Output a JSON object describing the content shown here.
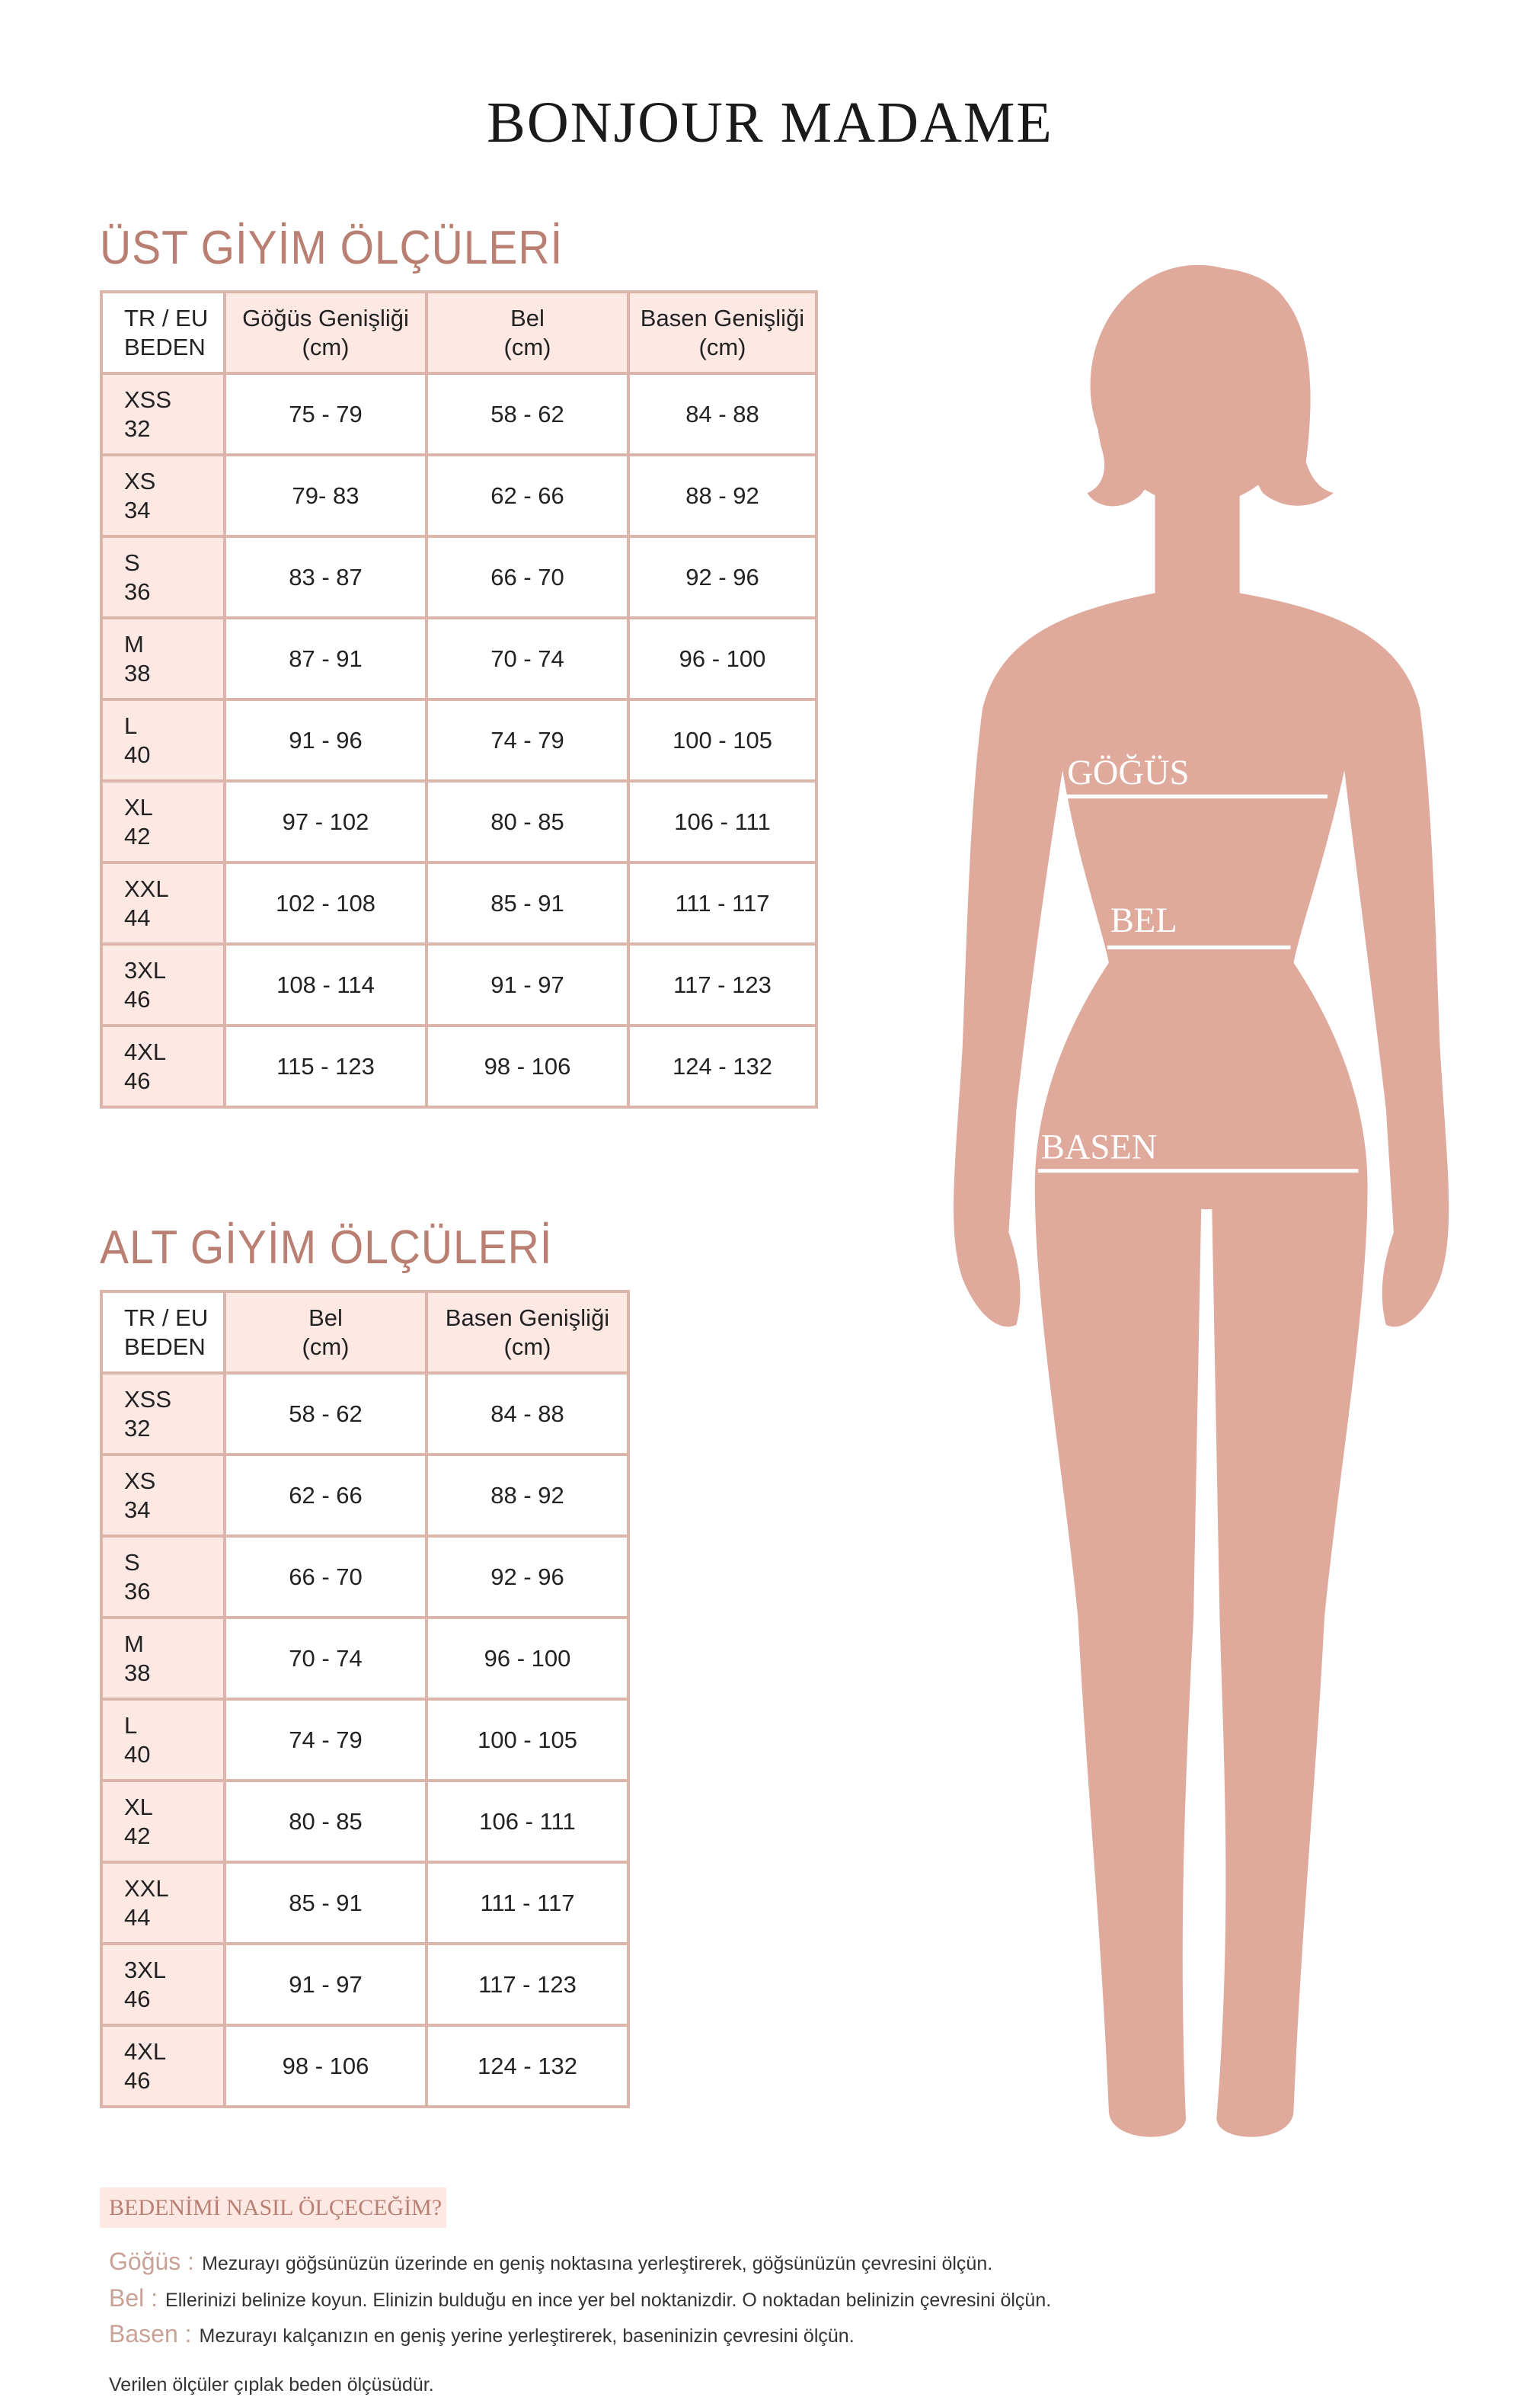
{
  "brand": "BONJOUR MADAME",
  "colors": {
    "accent": "#b97f72",
    "header_bg": "#fde8e3",
    "border": "#dcb5aa",
    "silhouette": "#dfa99c"
  },
  "upper": {
    "title": "ÜST GİYİM ÖLÇÜLERİ",
    "headers": [
      "TR / EU\nBEDEN",
      "Göğüs Genişliği\n(cm)",
      "Bel\n(cm)",
      "Basen Genişliği\n(cm)"
    ],
    "rows": [
      [
        "XSS\n32",
        "75 - 79",
        "58 - 62",
        "84 - 88"
      ],
      [
        "XS\n34",
        "79- 83",
        "62 - 66",
        "88 - 92"
      ],
      [
        "S\n36",
        "83 - 87",
        "66 - 70",
        "92 - 96"
      ],
      [
        "M\n38",
        "87 - 91",
        "70 - 74",
        "96 - 100"
      ],
      [
        "L\n40",
        "91 - 96",
        "74 - 79",
        "100 - 105"
      ],
      [
        "XL\n42",
        "97 - 102",
        "80 - 85",
        "106 - 111"
      ],
      [
        "XXL\n44",
        "102 - 108",
        "85 - 91",
        "111 - 117"
      ],
      [
        "3XL\n46",
        "108 - 114",
        "91 - 97",
        "117 - 123"
      ],
      [
        "4XL\n46",
        "115 - 123",
        "98 - 106",
        "124 - 132"
      ]
    ]
  },
  "lower": {
    "title": "ALT GİYİM ÖLÇÜLERİ",
    "headers": [
      "TR / EU\nBEDEN",
      "Bel\n(cm)",
      "Basen Genişliği\n(cm)"
    ],
    "rows": [
      [
        "XSS\n32",
        "58 - 62",
        "84 - 88"
      ],
      [
        "XS\n34",
        "62 - 66",
        "88 - 92"
      ],
      [
        "S\n36",
        "66 - 70",
        "92 - 96"
      ],
      [
        "M\n38",
        "70 - 74",
        "96 - 100"
      ],
      [
        "L\n40",
        "74 - 79",
        "100 - 105"
      ],
      [
        "XL\n42",
        "80 - 85",
        "106 - 111"
      ],
      [
        "XXL\n44",
        "85 - 91",
        "111 - 117"
      ],
      [
        "3XL\n46",
        "91 - 97",
        "117 - 123"
      ],
      [
        "4XL\n46",
        "98 - 106",
        "124 - 132"
      ]
    ]
  },
  "figure": {
    "chest_label": "GÖĞÜS",
    "waist_label": "BEL",
    "hip_label": "BASEN"
  },
  "howto": {
    "title": "BEDENİMİ NASIL ÖLÇECEĞİM?",
    "items": [
      {
        "key": "Göğüs :",
        "text": "Mezurayı göğsünüzün üzerinde en geniş noktasına yerleştirerek, göğsünüzün çevresini ölçün."
      },
      {
        "key": "Bel :",
        "text": "Ellerinizi belinize koyun. Elinizin bulduğu en ince yer bel noktanizdir. O noktadan belinizin çevresini ölçün."
      },
      {
        "key": "Basen :",
        "text": "Mezurayı kalçanızın en geniş yerine yerleştirerek, baseninizin çevresini ölçün."
      }
    ],
    "footnote": "Verilen ölçüler çıplak beden ölçüsüdür."
  }
}
